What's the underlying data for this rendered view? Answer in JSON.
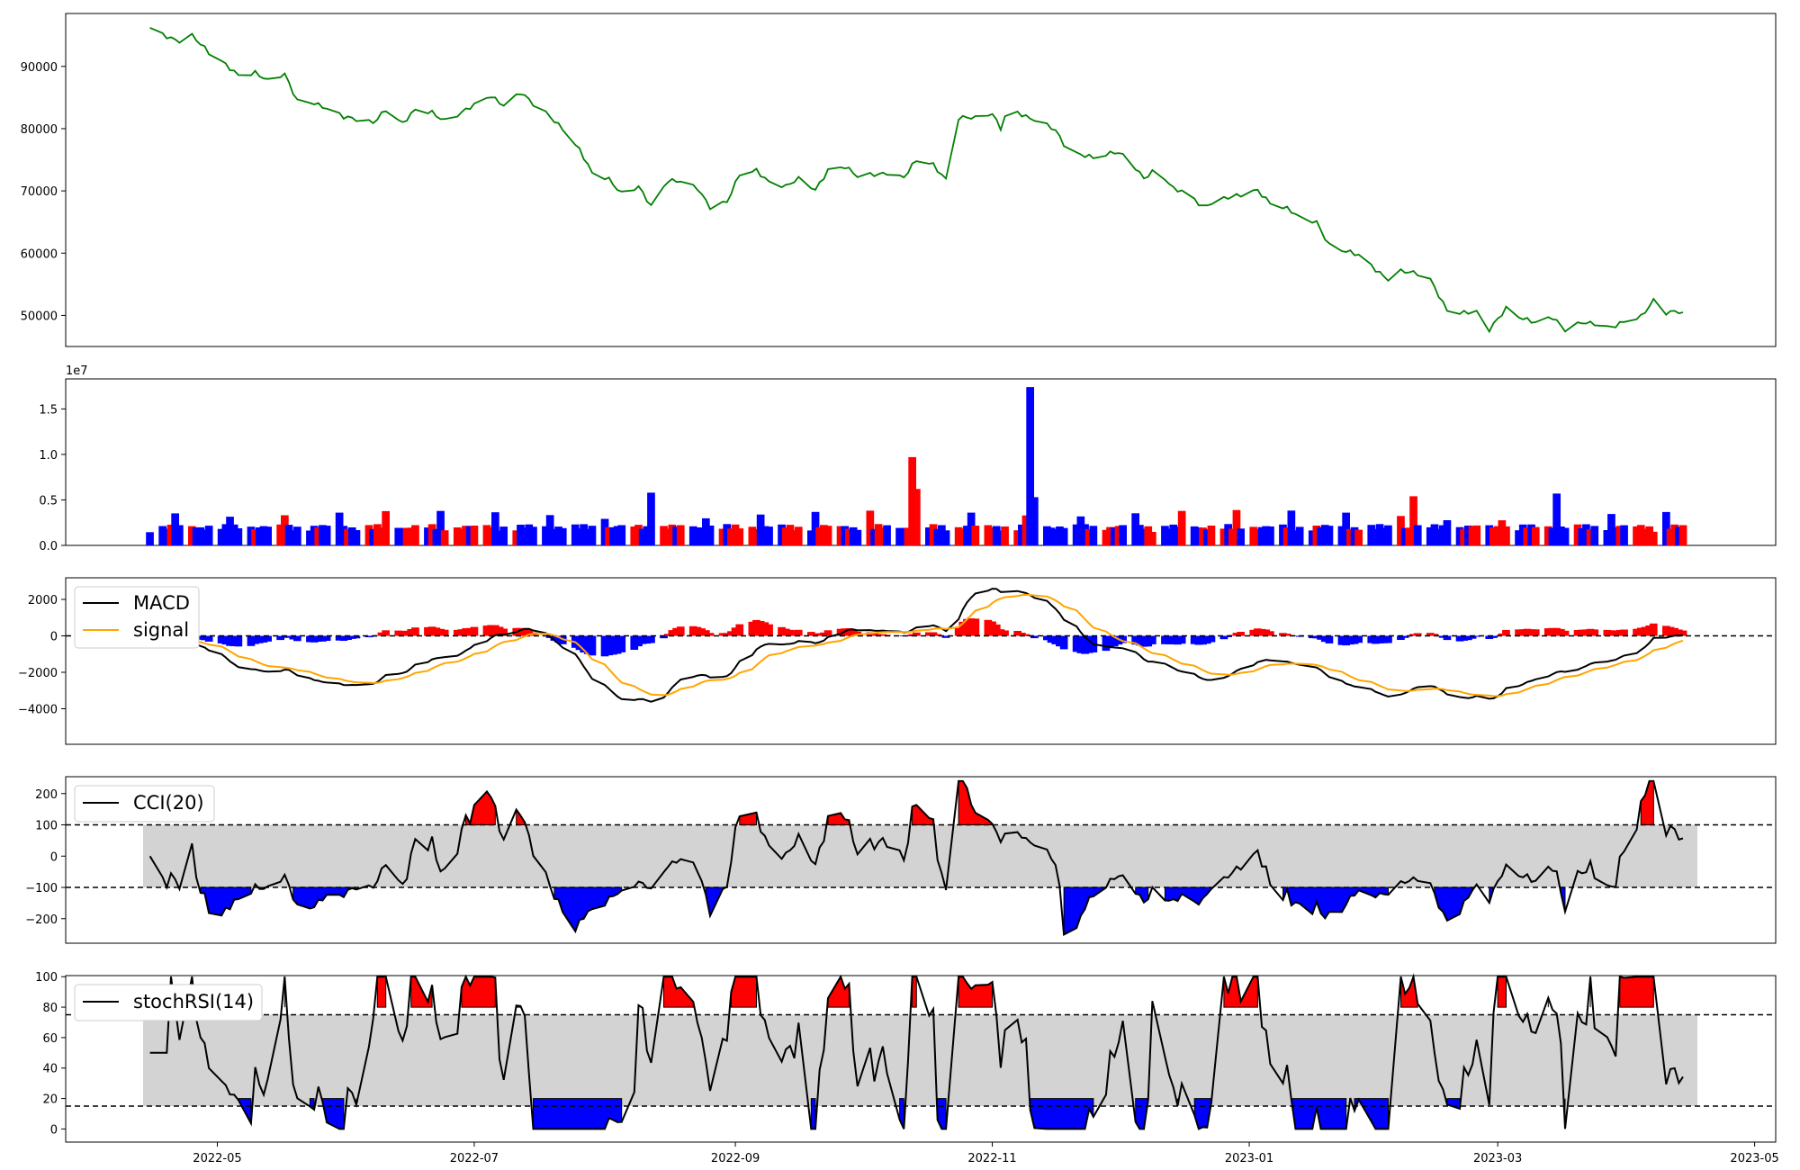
{
  "chart_data": [
    {
      "panel": "price",
      "type": "line",
      "color": "#008000",
      "ylim": [
        45000,
        98500
      ],
      "yticks": [
        "50000",
        "60000",
        "70000",
        "80000",
        "90000"
      ],
      "x_start": "2022-04-15",
      "x_end": "2023-04-14",
      "keypoints": [
        [
          "2022-04-15",
          96200
        ],
        [
          "2022-04-18",
          95000
        ],
        [
          "2022-04-22",
          94300
        ],
        [
          "2022-04-25",
          95100
        ],
        [
          "2022-04-29",
          92000
        ],
        [
          "2022-05-03",
          90200
        ],
        [
          "2022-05-06",
          88800
        ],
        [
          "2022-05-10",
          89100
        ],
        [
          "2022-05-13",
          87500
        ],
        [
          "2022-05-17",
          88600
        ],
        [
          "2022-05-20",
          84600
        ],
        [
          "2022-05-24",
          84300
        ],
        [
          "2022-05-27",
          83100
        ],
        [
          "2022-05-31",
          81700
        ],
        [
          "2022-06-03",
          81600
        ],
        [
          "2022-06-07",
          81200
        ],
        [
          "2022-06-10",
          83000
        ],
        [
          "2022-06-14",
          80600
        ],
        [
          "2022-06-17",
          83000
        ],
        [
          "2022-06-21",
          82800
        ],
        [
          "2022-06-24",
          81300
        ],
        [
          "2022-06-28",
          82400
        ],
        [
          "2022-07-01",
          83700
        ],
        [
          "2022-07-05",
          85400
        ],
        [
          "2022-07-08",
          83900
        ],
        [
          "2022-07-12",
          85700
        ],
        [
          "2022-07-15",
          83800
        ],
        [
          "2022-07-19",
          82000
        ],
        [
          "2022-07-22",
          80200
        ],
        [
          "2022-07-26",
          76600
        ],
        [
          "2022-07-29",
          72600
        ],
        [
          "2022-08-02",
          71800
        ],
        [
          "2022-08-05",
          69800
        ],
        [
          "2022-08-09",
          70800
        ],
        [
          "2022-08-12",
          67300
        ],
        [
          "2022-08-16",
          71500
        ],
        [
          "2022-08-19",
          71800
        ],
        [
          "2022-08-23",
          70600
        ],
        [
          "2022-08-26",
          67200
        ],
        [
          "2022-08-30",
          68000
        ],
        [
          "2022-09-02",
          72800
        ],
        [
          "2022-09-06",
          73500
        ],
        [
          "2022-09-09",
          71300
        ],
        [
          "2022-09-13",
          70500
        ],
        [
          "2022-09-16",
          72000
        ],
        [
          "2022-09-20",
          70400
        ],
        [
          "2022-09-23",
          73300
        ],
        [
          "2022-09-27",
          73700
        ],
        [
          "2022-09-30",
          72300
        ],
        [
          "2022-10-04",
          72800
        ],
        [
          "2022-10-07",
          73000
        ],
        [
          "2022-10-11",
          72000
        ],
        [
          "2022-10-14",
          74800
        ],
        [
          "2022-10-18",
          74300
        ],
        [
          "2022-10-21",
          72000
        ],
        [
          "2022-10-24",
          81800
        ],
        [
          "2022-10-28",
          81500
        ],
        [
          "2022-11-01",
          82400
        ],
        [
          "2022-11-03",
          80300
        ],
        [
          "2022-11-05",
          83800
        ],
        [
          "2022-11-09",
          81800
        ],
        [
          "2022-11-12",
          80900
        ],
        [
          "2022-11-16",
          79800
        ],
        [
          "2022-11-19",
          76700
        ],
        [
          "2022-11-23",
          75700
        ],
        [
          "2022-11-26",
          74900
        ],
        [
          "2022-11-30",
          76200
        ],
        [
          "2022-12-03",
          75800
        ],
        [
          "2022-12-07",
          72100
        ],
        [
          "2022-12-10",
          73300
        ],
        [
          "2022-12-14",
          70200
        ],
        [
          "2022-12-17",
          70000
        ],
        [
          "2022-12-21",
          67600
        ],
        [
          "2022-12-24",
          68200
        ],
        [
          "2022-12-28",
          68900
        ],
        [
          "2023-01-03",
          70300
        ],
        [
          "2023-01-06",
          68100
        ],
        [
          "2023-01-10",
          67000
        ],
        [
          "2023-01-13",
          65600
        ],
        [
          "2023-01-17",
          65100
        ],
        [
          "2023-01-20",
          61400
        ],
        [
          "2023-01-24",
          60200
        ],
        [
          "2023-01-27",
          59500
        ],
        [
          "2023-01-31",
          57400
        ],
        [
          "2023-02-03",
          56000
        ],
        [
          "2023-02-06",
          57200
        ],
        [
          "2023-02-10",
          56500
        ],
        [
          "2023-02-13",
          55600
        ],
        [
          "2023-02-17",
          51000
        ],
        [
          "2023-02-20",
          50600
        ],
        [
          "2023-02-24",
          50300
        ],
        [
          "2023-02-27",
          47500
        ],
        [
          "2023-03-03",
          51300
        ],
        [
          "2023-03-06",
          50000
        ],
        [
          "2023-03-10",
          48700
        ],
        [
          "2023-03-14",
          49500
        ],
        [
          "2023-03-17",
          47800
        ],
        [
          "2023-03-21",
          49100
        ],
        [
          "2023-03-24",
          48600
        ],
        [
          "2023-03-28",
          47800
        ],
        [
          "2023-03-31",
          49000
        ],
        [
          "2023-04-04",
          50000
        ],
        [
          "2023-04-07",
          52400
        ],
        [
          "2023-04-10",
          50300
        ],
        [
          "2023-04-14",
          50500
        ]
      ]
    }
  ],
  "x_axis": {
    "ticks": [
      "2022-05",
      "2022-07",
      "2022-09",
      "2022-11",
      "2023-01",
      "2023-03",
      "2023-05"
    ]
  },
  "volume": {
    "offset_label": "1e7",
    "yticks": [
      "0.0",
      "0.5",
      "1.0",
      "1.5"
    ]
  },
  "macd": {
    "yticks": [
      "−4000",
      "−2000",
      "0",
      "2000"
    ],
    "legend": [
      "MACD",
      "signal"
    ]
  },
  "cci": {
    "yticks": [
      "−200",
      "−100",
      "0",
      "100",
      "200"
    ],
    "legend": [
      "CCI(20)"
    ]
  },
  "stoch": {
    "yticks": [
      "0",
      "20",
      "40",
      "60",
      "80",
      "100"
    ],
    "legend": [
      "stochRSI(14)"
    ]
  },
  "colors": {
    "price": "#008000",
    "up": "#ff0000",
    "down": "#0000ff",
    "signal": "#ffa500",
    "band": "#d3d3d3"
  }
}
